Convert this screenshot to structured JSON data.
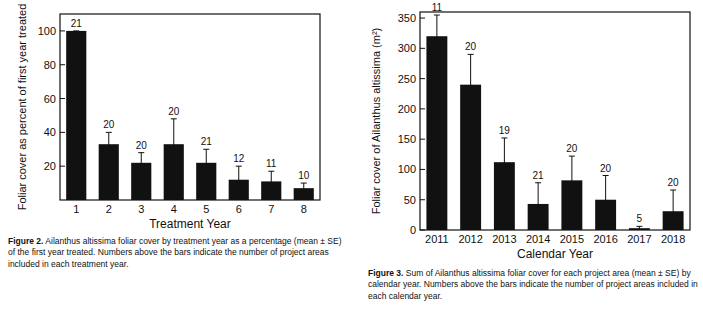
{
  "chart_data": [
    {
      "type": "bar",
      "y_label": "Foliar cover as percent of first year treated",
      "x_label": "Treatment Year",
      "categories": [
        "1",
        "2",
        "3",
        "4",
        "5",
        "6",
        "7",
        "8"
      ],
      "values": [
        100,
        33,
        22,
        33,
        22,
        12,
        11,
        7
      ],
      "errors": [
        0,
        7,
        6,
        15,
        8,
        8,
        6,
        3
      ],
      "counts": [
        21,
        20,
        20,
        20,
        21,
        12,
        11,
        10
      ],
      "color": "#111111",
      "ylim": [
        0,
        110
      ],
      "yticks": [
        20,
        40,
        60,
        80,
        100
      ],
      "grid": false,
      "caption_label": "Figure 2.",
      "caption": "Ailanthus altissima foliar cover by treatment year as a percentage (mean ± SE) of the first year treated. Numbers above the bars indicate the number of project areas included in each treatment year."
    },
    {
      "type": "bar",
      "y_label": "Foliar cover of Ailanthus altissima (m²)",
      "x_label": "Calendar Year",
      "categories": [
        "2011",
        "2012",
        "2013",
        "2014",
        "2015",
        "2016",
        "2017",
        "2018"
      ],
      "values": [
        320,
        240,
        112,
        43,
        82,
        50,
        3,
        31
      ],
      "errors": [
        35,
        50,
        40,
        35,
        40,
        40,
        3,
        35
      ],
      "counts": [
        11,
        20,
        19,
        21,
        20,
        20,
        5,
        20
      ],
      "color": "#111111",
      "ylim": [
        0,
        360
      ],
      "yticks": [
        0,
        50,
        100,
        150,
        200,
        250,
        300,
        350
      ],
      "grid": false,
      "caption_label": "Figure 3.",
      "caption": "Sum of Ailanthus altissima foliar cover for each project area (mean ± SE) by calendar year. Numbers above the bars indicate the number of project areas included in each calendar year."
    }
  ]
}
